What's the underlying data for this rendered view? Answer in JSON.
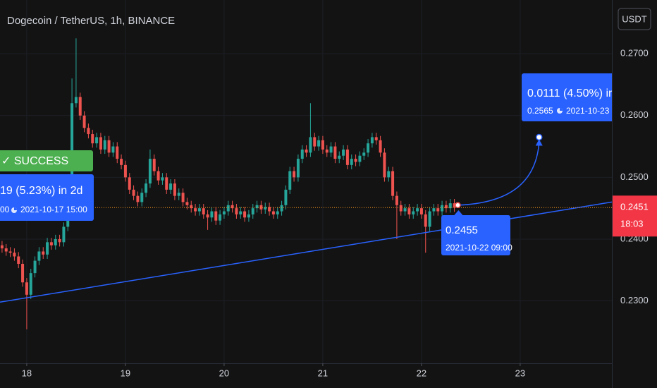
{
  "chart_data": {
    "type": "candlestick",
    "title": "Dogecoin / TetherUS, 1h, BINANCE",
    "currency_button": "USDT",
    "up_color": "#26a69a",
    "down_color": "#ef5350",
    "open": [
      0.239,
      0.2385,
      0.238,
      0.2378,
      0.2372,
      0.236,
      0.233,
      0.231,
      0.2345,
      0.2365,
      0.238,
      0.2375,
      0.2395,
      0.239,
      0.24,
      0.2395,
      0.242,
      0.245,
      0.262,
      0.263,
      0.26,
      0.258,
      0.257,
      0.2555,
      0.2565,
      0.2545,
      0.256,
      0.254,
      0.255,
      0.253,
      0.252,
      0.25,
      0.248,
      0.247,
      0.246,
      0.2475,
      0.249,
      0.253,
      0.251,
      0.2495,
      0.25,
      0.248,
      0.249,
      0.247,
      0.2475,
      0.246,
      0.2455,
      0.245,
      0.2445,
      0.245,
      0.244,
      0.2435,
      0.2445,
      0.243,
      0.244,
      0.2445,
      0.2455,
      0.245,
      0.244,
      0.2445,
      0.2435,
      0.244,
      0.245,
      0.2455,
      0.2448,
      0.2452,
      0.2445,
      0.244,
      0.2445,
      0.2455,
      0.248,
      0.251,
      0.25,
      0.253,
      0.2545,
      0.254,
      0.2565,
      0.255,
      0.256,
      0.2545,
      0.254,
      0.255,
      0.253,
      0.2535,
      0.2545,
      0.252,
      0.253,
      0.2525,
      0.2535,
      0.254,
      0.2555,
      0.2565,
      0.256,
      0.254,
      0.25,
      0.251,
      0.247,
      0.2455,
      0.2445,
      0.245,
      0.244,
      0.2445,
      0.245,
      0.244,
      0.242,
      0.2445,
      0.245,
      0.2445,
      0.2455,
      0.245,
      0.2458
    ],
    "high": [
      0.2397,
      0.2392,
      0.2387,
      0.2385,
      0.2379,
      0.2367,
      0.2337,
      0.2352,
      0.2372,
      0.2387,
      0.2387,
      0.2402,
      0.2402,
      0.2407,
      0.2407,
      0.2427,
      0.2457,
      0.266,
      0.2725,
      0.2637,
      0.2607,
      0.2587,
      0.2577,
      0.2572,
      0.2572,
      0.2567,
      0.2567,
      0.2557,
      0.2557,
      0.2537,
      0.2527,
      0.2507,
      0.2487,
      0.2477,
      0.2482,
      0.2497,
      0.2545,
      0.2537,
      0.2517,
      0.2507,
      0.2507,
      0.2497,
      0.2497,
      0.2482,
      0.2482,
      0.2467,
      0.2462,
      0.2457,
      0.2457,
      0.2457,
      0.2447,
      0.2452,
      0.2452,
      0.2447,
      0.2452,
      0.2462,
      0.2462,
      0.2457,
      0.2452,
      0.2452,
      0.2447,
      0.2457,
      0.2462,
      0.2462,
      0.2459,
      0.2459,
      0.2452,
      0.2452,
      0.2462,
      0.2487,
      0.2517,
      0.2517,
      0.2537,
      0.2552,
      0.2552,
      0.262,
      0.2572,
      0.2567,
      0.2567,
      0.2552,
      0.2557,
      0.2557,
      0.2542,
      0.2552,
      0.2552,
      0.2537,
      0.2537,
      0.2542,
      0.2547,
      0.2562,
      0.2572,
      0.2572,
      0.2567,
      0.2547,
      0.2517,
      0.2517,
      0.2477,
      0.2462,
      0.2457,
      0.2457,
      0.2452,
      0.2457,
      0.2457,
      0.2447,
      0.2452,
      0.2457,
      0.2457,
      0.2462,
      0.2462,
      0.2465,
      0.2465
    ],
    "low": [
      0.2378,
      0.2373,
      0.2371,
      0.2365,
      0.2353,
      0.2323,
      0.2254,
      0.2303,
      0.2338,
      0.2358,
      0.2368,
      0.2368,
      0.2383,
      0.2383,
      0.2388,
      0.2388,
      0.2413,
      0.244,
      0.2613,
      0.2593,
      0.2573,
      0.2563,
      0.2548,
      0.2548,
      0.2538,
      0.2538,
      0.2533,
      0.2533,
      0.2523,
      0.2513,
      0.2493,
      0.2473,
      0.2463,
      0.2453,
      0.2453,
      0.2468,
      0.2483,
      0.2503,
      0.2488,
      0.2488,
      0.2473,
      0.2473,
      0.2463,
      0.2463,
      0.2453,
      0.2448,
      0.2443,
      0.2438,
      0.2438,
      0.2433,
      0.2415,
      0.2428,
      0.2423,
      0.2423,
      0.2433,
      0.2438,
      0.2443,
      0.2433,
      0.2433,
      0.2428,
      0.2428,
      0.2433,
      0.2443,
      0.2441,
      0.2441,
      0.2438,
      0.2433,
      0.2433,
      0.2438,
      0.2448,
      0.2473,
      0.2493,
      0.2493,
      0.2523,
      0.2533,
      0.2533,
      0.2543,
      0.2543,
      0.2538,
      0.2533,
      0.2533,
      0.2523,
      0.2523,
      0.2528,
      0.2513,
      0.2513,
      0.2518,
      0.2518,
      0.2528,
      0.2533,
      0.2548,
      0.2553,
      0.2533,
      0.2493,
      0.2493,
      0.2463,
      0.24,
      0.2438,
      0.2438,
      0.2433,
      0.2433,
      0.2438,
      0.2433,
      0.2378,
      0.2413,
      0.2438,
      0.2438,
      0.2438,
      0.2443,
      0.2443,
      0.2444
    ],
    "close": [
      0.2385,
      0.238,
      0.2378,
      0.2372,
      0.236,
      0.233,
      0.231,
      0.2345,
      0.2365,
      0.238,
      0.2375,
      0.2395,
      0.239,
      0.24,
      0.2395,
      0.242,
      0.245,
      0.262,
      0.263,
      0.26,
      0.258,
      0.257,
      0.2555,
      0.2565,
      0.2545,
      0.256,
      0.254,
      0.255,
      0.253,
      0.252,
      0.25,
      0.248,
      0.247,
      0.246,
      0.2475,
      0.249,
      0.253,
      0.251,
      0.2495,
      0.25,
      0.248,
      0.249,
      0.247,
      0.2475,
      0.246,
      0.2455,
      0.245,
      0.2445,
      0.245,
      0.244,
      0.2435,
      0.2445,
      0.243,
      0.244,
      0.2445,
      0.2455,
      0.245,
      0.244,
      0.2445,
      0.2435,
      0.244,
      0.245,
      0.2455,
      0.2448,
      0.2452,
      0.2445,
      0.244,
      0.2445,
      0.2455,
      0.248,
      0.251,
      0.25,
      0.253,
      0.2545,
      0.254,
      0.2565,
      0.255,
      0.256,
      0.2545,
      0.254,
      0.255,
      0.253,
      0.2535,
      0.2545,
      0.252,
      0.253,
      0.2525,
      0.2535,
      0.254,
      0.2555,
      0.2565,
      0.256,
      0.254,
      0.25,
      0.251,
      0.247,
      0.2455,
      0.2445,
      0.245,
      0.244,
      0.2445,
      0.245,
      0.244,
      0.242,
      0.2445,
      0.245,
      0.2445,
      0.2455,
      0.245,
      0.2458,
      0.2451
    ],
    "xlim": [
      -0.5,
      148.3
    ],
    "xticks": [
      {
        "value": 6,
        "label": "18"
      },
      {
        "value": 30,
        "label": "19"
      },
      {
        "value": 54,
        "label": "20"
      },
      {
        "value": 78,
        "label": "21"
      },
      {
        "value": 102,
        "label": "22"
      },
      {
        "value": 126,
        "label": "23"
      }
    ],
    "ylim": [
      0.2199,
      0.2787
    ],
    "yticks": [
      {
        "value": 0.23,
        "label": "0.2300"
      },
      {
        "value": 0.24,
        "label": "0.2400"
      },
      {
        "value": 0.25,
        "label": "0.2500"
      },
      {
        "value": 0.26,
        "label": "0.2600"
      },
      {
        "value": 0.27,
        "label": "0.2700"
      }
    ],
    "grid": true,
    "trend_line": {
      "color": "#2962ff",
      "x": [
        -0.5,
        148.3
      ],
      "y": [
        0.2298,
        0.246
      ]
    },
    "last_price": {
      "value": 0.2451,
      "countdown": "18:03",
      "color": "#f23645"
    },
    "forecasts": [
      {
        "status": "✓ SUCCESS",
        "change": "19 (5.23%) in 2d",
        "target_price": "00",
        "target_time": "2021-10-17 15:00"
      },
      {
        "change": "0.0111 (4.50%) in",
        "entry_price": 0.2455,
        "entry_time": "2021-10-22 09:00",
        "entry_index": 111,
        "target_price": 0.2565,
        "target_time": "2021-10-23",
        "target_index": 130.6
      }
    ]
  }
}
